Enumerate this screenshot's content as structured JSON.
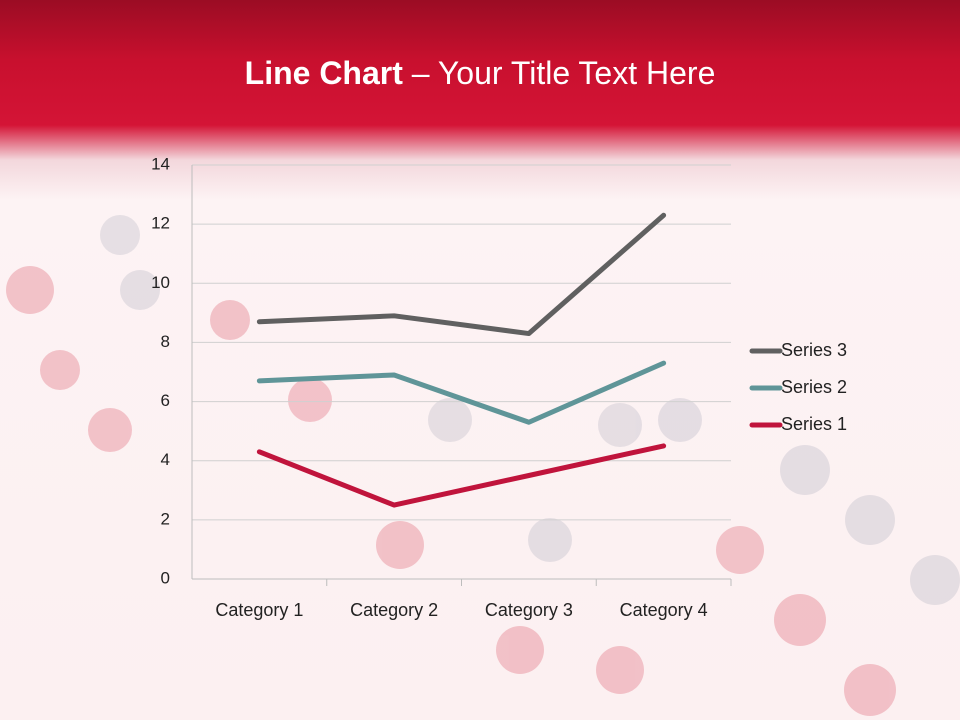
{
  "slide": {
    "title_emphasis": "Line Chart",
    "title_text": "– Your Title Text Here"
  },
  "chart_data": {
    "type": "line",
    "stacked": true,
    "categories": [
      "Category 1",
      "Category 2",
      "Category 3",
      "Category 4"
    ],
    "series": [
      {
        "name": "Series 1",
        "color": "#c0143c",
        "values": [
          4.3,
          2.5,
          3.5,
          4.5
        ]
      },
      {
        "name": "Series 2",
        "color": "#5f9598",
        "values": [
          2.4,
          4.4,
          1.8,
          2.8
        ]
      },
      {
        "name": "Series 3",
        "color": "#606060",
        "values": [
          2,
          2,
          3,
          5
        ]
      }
    ],
    "ylim": [
      0,
      14
    ],
    "yticks": [
      0,
      2,
      4,
      6,
      8,
      10,
      12,
      14
    ],
    "grid": true,
    "legend": "right"
  }
}
